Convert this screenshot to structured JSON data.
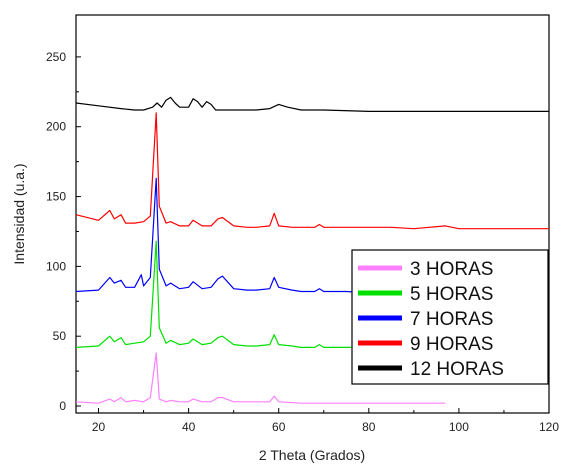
{
  "chart_data": {
    "type": "line",
    "title": "",
    "xlabel": "2 Theta (Grados)",
    "ylabel": "Intensidad (u.a.)",
    "xlim": [
      15,
      120
    ],
    "ylim": [
      -5,
      280
    ],
    "x_ticks": [
      20,
      40,
      60,
      80,
      100,
      120
    ],
    "y_ticks": [
      0,
      50,
      100,
      150,
      200,
      250
    ],
    "legend_position": "bottom-right",
    "grid": false,
    "series": [
      {
        "name": "3 HORAS",
        "color": "#ff80ff",
        "x": [
          15,
          20,
          22.5,
          23.5,
          25,
          26,
          28,
          30,
          31.5,
          32.8,
          33.5,
          35,
          36,
          38,
          40,
          41,
          43,
          45,
          46.5,
          47.5,
          50,
          55,
          58,
          59,
          60,
          65,
          70,
          80,
          90,
          97
        ],
        "values": [
          3,
          2,
          5,
          3,
          6,
          3,
          4,
          3,
          6,
          38,
          5,
          3,
          4,
          3,
          3,
          5,
          3,
          3,
          6,
          6,
          3,
          3,
          3,
          7,
          3,
          2,
          2,
          2,
          2,
          2
        ]
      },
      {
        "name": "5 HORAS",
        "color": "#00e000",
        "x": [
          15,
          20,
          22.5,
          23.5,
          25,
          26,
          28,
          30,
          31.5,
          32.8,
          33.5,
          35,
          36,
          38,
          40,
          41,
          43,
          45,
          46.5,
          47.5,
          50,
          53,
          55,
          58,
          59,
          60,
          63,
          65,
          68,
          69,
          70,
          75,
          80,
          85,
          90
        ],
        "values": [
          42,
          43,
          50,
          46,
          49,
          44,
          45,
          46,
          50,
          118,
          56,
          45,
          47,
          44,
          45,
          48,
          44,
          45,
          49,
          50,
          44,
          43,
          43,
          44,
          51,
          44,
          43,
          42,
          42,
          44,
          42,
          42,
          42,
          41,
          41
        ]
      },
      {
        "name": "7 HORAS",
        "color": "#0000ff",
        "x": [
          15,
          20,
          22.5,
          23.5,
          25,
          26,
          28,
          29.5,
          30,
          31.5,
          32.8,
          33.5,
          35,
          36,
          38,
          40,
          41,
          43,
          45,
          46.5,
          47.5,
          50,
          53,
          55,
          58,
          59,
          60,
          63,
          65,
          68,
          69,
          70,
          75,
          80
        ],
        "values": [
          82,
          83,
          92,
          88,
          90,
          85,
          85,
          94,
          86,
          92,
          163,
          98,
          86,
          88,
          84,
          85,
          89,
          84,
          85,
          91,
          93,
          84,
          83,
          83,
          84,
          92,
          85,
          83,
          82,
          82,
          84,
          82,
          82,
          81
        ]
      },
      {
        "name": "9 HORAS",
        "color": "#ff0000",
        "x": [
          15,
          20,
          22.5,
          23.5,
          25,
          26,
          28,
          30,
          31.5,
          32.8,
          33.5,
          35,
          36,
          38,
          40,
          41,
          43,
          45,
          46.5,
          47.5,
          50,
          53,
          55,
          58,
          59,
          60,
          63,
          65,
          68,
          69,
          70,
          75,
          80,
          85,
          90,
          97,
          100,
          110,
          120
        ],
        "values": [
          137,
          133,
          140,
          134,
          137,
          131,
          131,
          132,
          136,
          210,
          143,
          131,
          132,
          129,
          129,
          133,
          129,
          129,
          134,
          135,
          129,
          128,
          128,
          129,
          138,
          129,
          128,
          128,
          128,
          130,
          128,
          128,
          128,
          128,
          127,
          129,
          127,
          127,
          127
        ]
      },
      {
        "name": "12 HORAS",
        "color": "#000000",
        "x": [
          15,
          20,
          25,
          28,
          30,
          32,
          33,
          34,
          35,
          36,
          37,
          38,
          40,
          41,
          42,
          43,
          44,
          45,
          46,
          48,
          50,
          55,
          58,
          60,
          62,
          65,
          70,
          80,
          90,
          100,
          110,
          120
        ],
        "values": [
          217,
          215,
          213,
          212,
          212,
          214,
          217,
          214,
          219,
          221,
          217,
          214,
          214,
          220,
          218,
          214,
          218,
          216,
          212,
          212,
          212,
          212,
          213,
          216,
          214,
          212,
          212,
          211,
          211,
          211,
          211,
          211
        ]
      }
    ]
  }
}
